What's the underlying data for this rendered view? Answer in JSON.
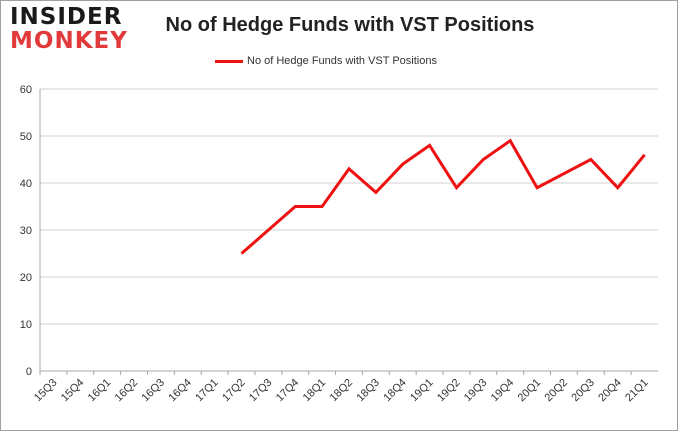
{
  "logo": {
    "line1": "INSIDER",
    "line2": "MONKEY"
  },
  "chart_data": {
    "type": "line",
    "title": "No of Hedge Funds with VST Positions",
    "xlabel": "",
    "ylabel": "",
    "ylim": [
      0,
      60
    ],
    "yticks": [
      0,
      10,
      20,
      30,
      40,
      50,
      60
    ],
    "grid": true,
    "legend_position": "top-center",
    "categories": [
      "15Q3",
      "15Q4",
      "16Q1",
      "16Q2",
      "16Q3",
      "16Q4",
      "17Q1",
      "17Q2",
      "17Q3",
      "17Q4",
      "18Q1",
      "18Q2",
      "18Q3",
      "18Q4",
      "19Q1",
      "19Q2",
      "19Q3",
      "19Q4",
      "20Q1",
      "20Q2",
      "20Q3",
      "20Q4",
      "21Q1"
    ],
    "series": [
      {
        "name": "No of Hedge Funds with VST Positions",
        "color": "#ee1111",
        "values": [
          null,
          null,
          null,
          null,
          null,
          null,
          null,
          25,
          30,
          35,
          35,
          43,
          38,
          44,
          48,
          39,
          45,
          49,
          39,
          42,
          45,
          39,
          46
        ]
      }
    ]
  }
}
